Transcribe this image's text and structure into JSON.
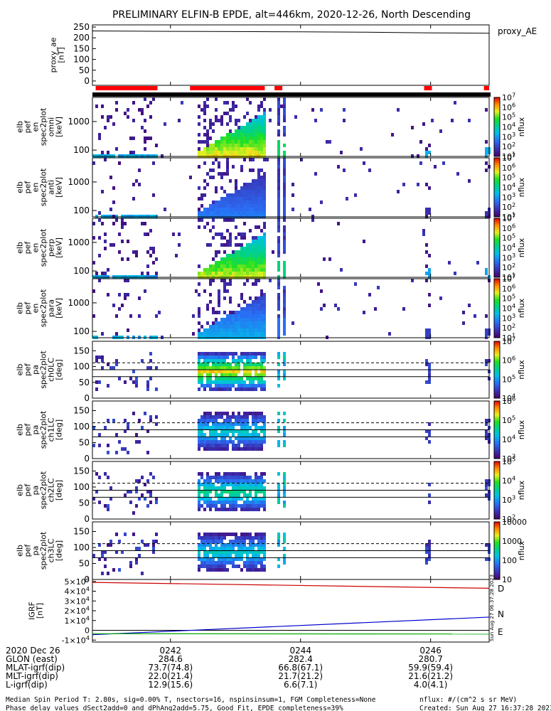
{
  "title": "PRELIMINARY ELFIN-B EPDE, alt=446km, 2020-12-26, North Descending",
  "side_label_ae": "proxy_AE",
  "time_axis": {
    "tick_labels": [
      "0242",
      "0244",
      "0246"
    ],
    "tick_minutes": [
      242,
      244,
      246
    ],
    "range_minutes": [
      240.8,
      246.9
    ]
  },
  "red_bars": [
    [
      240.85,
      241.8
    ],
    [
      242.3,
      243.45
    ],
    [
      243.6,
      243.72
    ],
    [
      245.9,
      246.02
    ],
    [
      246.82,
      246.9
    ]
  ],
  "chart_data": [
    {
      "type": "line",
      "panel": "proxy_ae",
      "ylabel": "proxy_ae\n[nT]",
      "ylim": [
        -20,
        260
      ],
      "y_ticks": [
        "0",
        "50",
        "100",
        "150",
        "200",
        "250"
      ],
      "x": [
        240.8,
        242.0,
        243.0,
        244.0,
        245.0,
        246.0,
        246.9
      ],
      "series": [
        {
          "name": "proxy_AE",
          "values": [
            232,
            230,
            229,
            228,
            226,
            223,
            221
          ]
        }
      ]
    },
    {
      "type": "heatmap",
      "panel": "omni",
      "ylabel": "elb\npef\nen\nspec2plot\nomni\n[keV]",
      "y_ticks": [
        "100",
        "1000"
      ],
      "y_log_range": [
        60,
        7000
      ],
      "colorbar": {
        "label": "nflux",
        "ticks": [
          "10^1",
          "10^2",
          "10^3",
          "10^4",
          "10^5",
          "10^6",
          "10^7"
        ]
      }
    },
    {
      "type": "heatmap",
      "panel": "anti",
      "ylabel": "elb\npef\nen\nspec2plot\nanti\n[keV]",
      "y_ticks": [
        "100",
        "1000"
      ],
      "y_log_range": [
        60,
        7000
      ],
      "colorbar": {
        "label": "nflux",
        "ticks": [
          "10^1",
          "10^2",
          "10^3",
          "10^4",
          "10^5",
          "10^6",
          "10^7"
        ]
      }
    },
    {
      "type": "heatmap",
      "panel": "perp",
      "ylabel": "elb\npef\nen\nspec2plot\nperp\n[keV]",
      "y_ticks": [
        "100",
        "1000"
      ],
      "y_log_range": [
        60,
        7000
      ],
      "colorbar": {
        "label": "nflux",
        "ticks": [
          "10^1",
          "10^2",
          "10^3",
          "10^4",
          "10^5",
          "10^6",
          "10^7"
        ]
      }
    },
    {
      "type": "heatmap",
      "panel": "para",
      "ylabel": "elb\npef\nen\nspec2plot\npara\n[keV]",
      "y_ticks": [
        "100",
        "1000"
      ],
      "y_log_range": [
        60,
        7000
      ],
      "colorbar": {
        "label": "nflux",
        "ticks": [
          "10^1",
          "10^2",
          "10^3",
          "10^4",
          "10^5",
          "10^6",
          "10^7"
        ]
      }
    },
    {
      "type": "heatmap",
      "panel": "ch0",
      "ylabel": "elb\npef\npa\nspec2plot\nch0LC\n[deg]",
      "ylim": [
        0,
        180
      ],
      "y_ticks": [
        "0",
        "50",
        "100",
        "150"
      ],
      "loss_cone_lines": [
        68,
        112
      ],
      "colorbar": {
        "label": "nflux",
        "ticks": [
          "10^4",
          "10^5",
          "10^6",
          "10^7"
        ]
      }
    },
    {
      "type": "heatmap",
      "panel": "ch1",
      "ylabel": "elb\npef\npa\nspec2plot\nch1LC\n[deg]",
      "ylim": [
        0,
        180
      ],
      "y_ticks": [
        "0",
        "50",
        "100",
        "150"
      ],
      "loss_cone_lines": [
        68,
        112
      ],
      "colorbar": {
        "label": "nflux",
        "ticks": [
          "10^3",
          "10^4",
          "10^5",
          "10^6"
        ]
      }
    },
    {
      "type": "heatmap",
      "panel": "ch2",
      "ylabel": "elb\npef\npa\nspec2plot\nch2LC\n[deg]",
      "ylim": [
        0,
        180
      ],
      "y_ticks": [
        "0",
        "50",
        "100",
        "150"
      ],
      "loss_cone_lines": [
        68,
        112
      ],
      "colorbar": {
        "label": "nflux",
        "ticks": [
          "10^2",
          "10^3",
          "10^4",
          "10^5"
        ]
      }
    },
    {
      "type": "heatmap",
      "panel": "ch3",
      "ylabel": "elb\npef\npa\nspec2plot\nch3LC\n[deg]",
      "ylim": [
        0,
        180
      ],
      "y_ticks": [
        "0",
        "50",
        "100",
        "150"
      ],
      "loss_cone_lines": [
        68,
        112
      ],
      "colorbar": {
        "label": "nflux",
        "ticks": [
          "10",
          "100",
          "1000",
          "10000"
        ]
      }
    },
    {
      "type": "line",
      "panel": "igrf",
      "ylabel": "IGRF\n[nT]",
      "ylim": [
        -12000,
        52000
      ],
      "y_ticks": [
        "-1×10^4",
        "0",
        "1×10^4",
        "2×10^4",
        "3×10^4",
        "4×10^4",
        "5×10^4"
      ],
      "x": [
        240.8,
        246.9
      ],
      "series": [
        {
          "name": "D",
          "color": "#cc0000",
          "values": [
            49000,
            43000
          ]
        },
        {
          "name": "N",
          "color": "#0000cc",
          "values": [
            -4500,
            13500
          ]
        },
        {
          "name": "E",
          "color": "#00aa00",
          "values": [
            -3500,
            -3800
          ]
        }
      ]
    }
  ],
  "orbit_table": {
    "rows": [
      {
        "label": "2020 Dec 26",
        "values": [
          "0242",
          "0244",
          "0246"
        ]
      },
      {
        "label": "GLON (east)",
        "values": [
          "284.6",
          "282.4",
          "280.7"
        ]
      },
      {
        "label": "MLAT-igrf(dip)",
        "values": [
          "73.7(74.8)",
          "66.8(67.1)",
          "59.9(59.4)"
        ]
      },
      {
        "label": "MLT-igrf(dip)",
        "values": [
          "22.0(21.4)",
          "21.7(21.2)",
          "21.6(21.2)"
        ]
      },
      {
        "label": "L-igrf(dip)",
        "values": [
          "12.9(15.6)",
          "6.6(7.1)",
          "4.0(4.1)"
        ]
      }
    ]
  },
  "footer": {
    "line1": "Median Spin Period T: 2.80s, sig=0.00% T, nsectors=16, nspinsinsum=1, FGM Completeness=None",
    "line2": "Phase delay values dSect2add=0 and dPhAng2add=5.75, Good Fit, EPDE completeness=39%",
    "nflux_units": "nflux: #/(cm^2 s sr MeV)",
    "created": "Created: Sun Aug 27 16:37:28 2023",
    "side_stamp": "Sun Aug 27 06:37:28 2023"
  },
  "colors": {
    "red_bar": "#ff0000",
    "igrf_d": "#cc0000",
    "igrf_n": "#0000cc",
    "igrf_e": "#00aa00"
  }
}
